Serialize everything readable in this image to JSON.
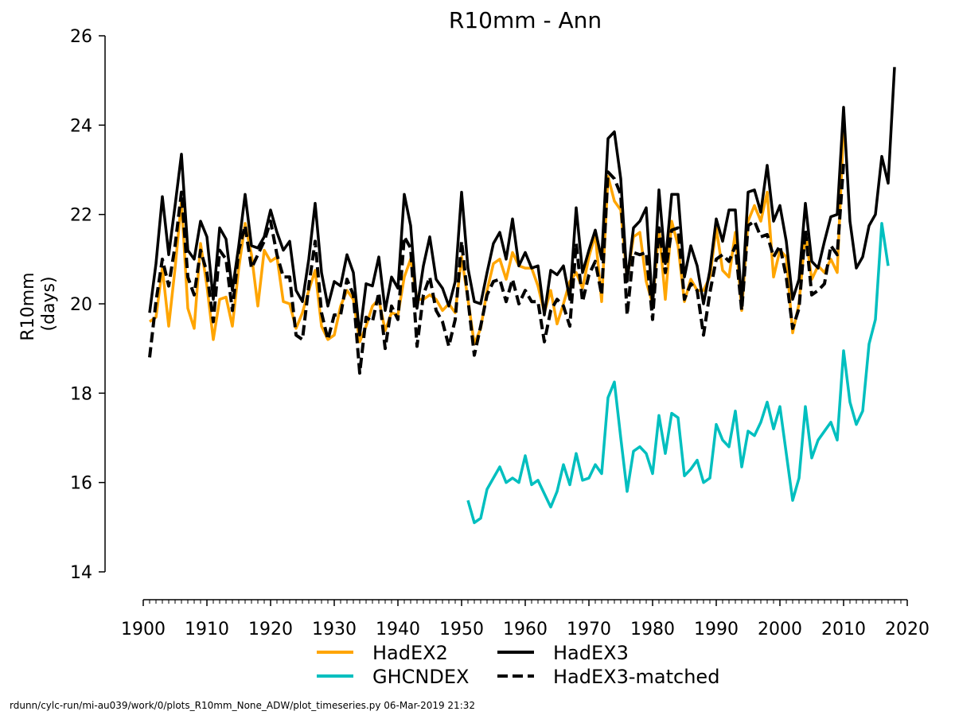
{
  "chart_data": {
    "type": "line",
    "title": "R10mm - Ann",
    "ylabel_line1": "R10mm",
    "ylabel_line2": "(days)",
    "xlabel": "",
    "xlim": [
      1900,
      2020
    ],
    "ylim": [
      14,
      26
    ],
    "xticks": [
      1900,
      1910,
      1920,
      1930,
      1940,
      1950,
      1960,
      1970,
      1980,
      1990,
      2000,
      2010,
      2020
    ],
    "yticks": [
      14,
      16,
      18,
      20,
      22,
      24,
      26
    ],
    "x_minor_tick_step_years": 1,
    "grid": false,
    "legend_placement": "bottom",
    "series": [
      {
        "name": "HadEX2",
        "color": "#FFA500",
        "dash": "solid",
        "x_start": 1901,
        "x_end": 2010,
        "values": [
          19.6,
          19.7,
          20.8,
          19.5,
          20.8,
          22.3,
          19.9,
          19.45,
          21.35,
          20.4,
          19.2,
          20.1,
          20.15,
          19.5,
          20.8,
          21.8,
          21.1,
          19.95,
          21.2,
          20.95,
          21.05,
          20.05,
          20.0,
          19.45,
          19.8,
          20.3,
          20.75,
          19.5,
          19.2,
          19.3,
          19.95,
          20.3,
          20.1,
          19.15,
          19.5,
          19.95,
          20.1,
          19.4,
          19.8,
          19.75,
          20.6,
          21.0,
          20.1,
          20.1,
          20.2,
          20.1,
          19.85,
          20.0,
          19.8,
          21.05,
          20.1,
          19.1,
          19.45,
          20.3,
          20.9,
          21.0,
          20.55,
          21.15,
          20.85,
          20.8,
          20.8,
          20.4,
          19.8,
          20.3,
          19.55,
          20.0,
          20.5,
          20.7,
          20.35,
          21.05,
          21.55,
          20.05,
          22.85,
          22.3,
          22.1,
          20.55,
          21.5,
          21.6,
          20.5,
          20.0,
          21.7,
          20.1,
          21.85,
          21.3,
          20.05,
          20.55,
          20.3,
          20.3,
          20.6,
          21.7,
          20.75,
          20.6,
          21.6,
          19.85,
          21.85,
          22.2,
          21.85,
          22.5,
          20.6,
          21.2,
          21.05,
          19.35,
          20.0,
          21.6,
          20.55,
          20.85,
          20.7,
          21.0,
          20.7,
          23.95
        ]
      },
      {
        "name": "GHCNDEX",
        "color": "#00BFBF",
        "dash": "solid",
        "x_start": 1951,
        "x_end": 2017,
        "values": [
          15.6,
          15.1,
          15.2,
          15.85,
          16.1,
          16.35,
          16.0,
          16.1,
          16.0,
          16.6,
          15.95,
          16.05,
          15.75,
          15.45,
          15.8,
          16.4,
          15.95,
          16.65,
          16.05,
          16.1,
          16.4,
          16.2,
          17.9,
          18.25,
          17.0,
          15.8,
          16.7,
          16.8,
          16.65,
          16.2,
          17.5,
          16.65,
          17.55,
          17.45,
          16.15,
          16.3,
          16.5,
          16.0,
          16.1,
          17.3,
          16.95,
          16.8,
          17.6,
          16.35,
          17.15,
          17.05,
          17.35,
          17.8,
          17.2,
          17.7,
          16.65,
          15.6,
          16.1,
          17.7,
          16.55,
          16.95,
          17.15,
          17.35,
          16.95,
          18.95,
          17.8,
          17.3,
          17.6,
          19.1,
          19.65,
          21.8,
          20.85
        ]
      },
      {
        "name": "HadEX3",
        "color": "#000000",
        "dash": "solid",
        "x_start": 1901,
        "x_end": 2018,
        "values": [
          19.8,
          20.9,
          22.4,
          21.1,
          22.2,
          23.35,
          21.2,
          21.0,
          21.85,
          21.5,
          20.1,
          21.7,
          21.45,
          20.3,
          21.3,
          22.45,
          21.3,
          21.25,
          21.5,
          22.1,
          21.6,
          21.2,
          21.4,
          20.3,
          20.05,
          21.0,
          22.25,
          20.7,
          19.95,
          20.5,
          20.4,
          21.1,
          20.7,
          19.3,
          20.45,
          20.4,
          21.05,
          19.85,
          20.6,
          20.35,
          22.45,
          21.75,
          19.9,
          20.85,
          21.5,
          20.55,
          20.35,
          19.95,
          20.5,
          22.5,
          20.8,
          20.05,
          20.0,
          20.7,
          21.35,
          21.6,
          21.0,
          21.9,
          20.85,
          21.15,
          20.8,
          20.85,
          19.75,
          20.75,
          20.65,
          20.85,
          20.1,
          22.15,
          20.7,
          21.2,
          21.65,
          21.0,
          23.7,
          23.85,
          22.8,
          20.5,
          21.7,
          21.85,
          22.15,
          19.9,
          22.55,
          20.9,
          22.45,
          22.45,
          20.6,
          21.3,
          20.85,
          20.0,
          20.75,
          21.9,
          21.4,
          22.1,
          22.1,
          20.0,
          22.5,
          22.55,
          22.05,
          23.1,
          21.85,
          22.2,
          21.4,
          20.1,
          20.55,
          22.25,
          20.95,
          20.8,
          21.4,
          21.95,
          22.0,
          24.4,
          21.85,
          20.8,
          21.05,
          21.75,
          22.0,
          23.3,
          22.7,
          25.3
        ]
      },
      {
        "name": "HadEX3-matched",
        "color": "#000000",
        "dash": "dashed",
        "x_start": 1901,
        "x_end": 2010,
        "values": [
          18.8,
          20.05,
          21.0,
          20.4,
          21.3,
          22.5,
          20.6,
          20.2,
          21.2,
          20.7,
          19.6,
          21.2,
          21.0,
          19.85,
          21.2,
          21.75,
          20.8,
          21.1,
          21.4,
          21.85,
          21.1,
          20.6,
          20.6,
          19.3,
          19.2,
          20.4,
          21.4,
          19.8,
          19.2,
          19.75,
          19.75,
          20.55,
          20.2,
          18.45,
          19.7,
          19.6,
          20.25,
          19.0,
          19.95,
          19.65,
          21.5,
          21.25,
          19.05,
          20.2,
          20.6,
          19.85,
          19.6,
          19.05,
          19.65,
          21.4,
          20.1,
          18.85,
          19.5,
          20.2,
          20.5,
          20.55,
          20.05,
          20.55,
          20.0,
          20.3,
          20.05,
          20.05,
          19.15,
          19.85,
          20.1,
          19.95,
          19.5,
          21.35,
          20.05,
          20.65,
          20.95,
          20.2,
          22.95,
          22.8,
          22.45,
          19.75,
          21.15,
          21.1,
          21.15,
          19.65,
          21.7,
          20.7,
          21.65,
          21.7,
          20.1,
          20.45,
          20.3,
          19.3,
          20.25,
          21.0,
          21.1,
          20.95,
          21.3,
          19.85,
          21.75,
          21.85,
          21.5,
          21.55,
          21.05,
          21.3,
          20.6,
          19.45,
          19.9,
          21.65,
          20.2,
          20.3,
          20.45,
          21.3,
          21.1,
          23.15
        ]
      }
    ]
  },
  "footer": "rdunn/cylc-run/mi-au039/work/0/plots_R10mm_None_ADW/plot_timeseries.py 06-Mar-2019 21:32"
}
